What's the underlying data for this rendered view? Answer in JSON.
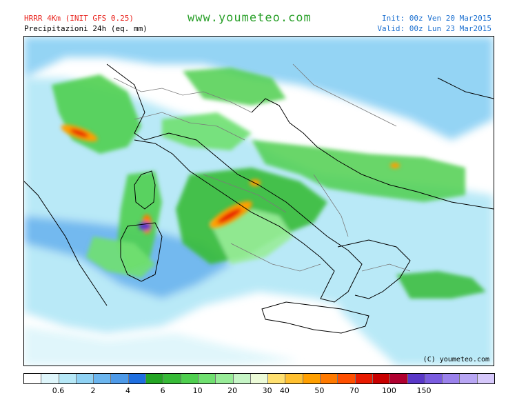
{
  "header": {
    "model": "HRRR 4Km (INIT GFS 0.25)",
    "product": "Precipitazioni 24h (eq. mm)",
    "site": "www.youmeteo.com",
    "init": "Init: 00z Ven  20 Mar2015",
    "valid": "Valid: 00z Lun  23 Mar2015"
  },
  "map": {
    "copyright": "(C) youmeteo.com",
    "land_color": "#ffffff",
    "coast_color": "#000000",
    "border_color": "#7a7a7a"
  },
  "legend": {
    "colors": [
      "#ffffff",
      "#dff6fb",
      "#b6e8f7",
      "#8fd2f4",
      "#6cb6ef",
      "#4e9ae8",
      "#1f6fe0",
      "#24a524",
      "#37bb37",
      "#4fcf4f",
      "#70e070",
      "#98ec98",
      "#c6f5c6",
      "#ecfbd8",
      "#ffe070",
      "#ffc030",
      "#ff9f00",
      "#ff7a00",
      "#ff4f00",
      "#e81a00",
      "#c80000",
      "#b00030",
      "#5a38c8",
      "#7a5ce0",
      "#9b82ec",
      "#b8a6f4",
      "#d6c8fb"
    ],
    "labels": [
      {
        "text": "0.6",
        "pos": 2
      },
      {
        "text": "2",
        "pos": 4
      },
      {
        "text": "4",
        "pos": 6
      },
      {
        "text": "6",
        "pos": 8
      },
      {
        "text": "10",
        "pos": 10
      },
      {
        "text": "20",
        "pos": 12
      },
      {
        "text": "30",
        "pos": 14
      },
      {
        "text": "40",
        "pos": 15
      },
      {
        "text": "50",
        "pos": 17
      },
      {
        "text": "70",
        "pos": 19
      },
      {
        "text": "100",
        "pos": 21
      },
      {
        "text": "150",
        "pos": 23
      }
    ]
  }
}
